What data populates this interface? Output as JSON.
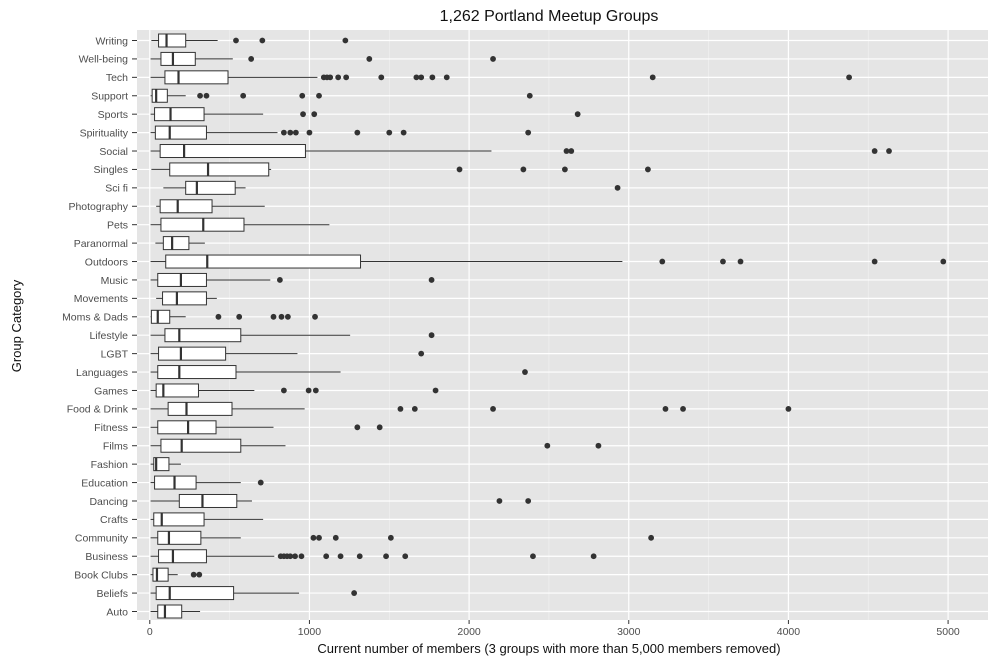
{
  "chart_data": {
    "type": "boxplot",
    "orientation": "horizontal",
    "title": "1,262 Portland Meetup Groups",
    "xlabel": "Current number of members (3 groups with more than 5,000 members removed)",
    "ylabel": "Group Category",
    "xlim": [
      -80,
      5250
    ],
    "xticks": [
      0,
      1000,
      2000,
      3000,
      4000,
      5000
    ],
    "xtick_labels": [
      "0",
      "1000",
      "2000",
      "3000",
      "4000",
      "5000"
    ],
    "grid": true,
    "background": "#e5e5e5",
    "box_fill": "#ffffff",
    "line_color": "#333333",
    "categories": [
      "Writing",
      "Well-being",
      "Tech",
      "Support",
      "Sports",
      "Spirituality",
      "Social",
      "Singles",
      "Sci fi",
      "Photography",
      "Pets",
      "Paranormal",
      "Outdoors",
      "Music",
      "Movements",
      "Moms & Dads",
      "Lifestyle",
      "LGBT",
      "Languages",
      "Games",
      "Food & Drink",
      "Fitness",
      "Films",
      "Fashion",
      "Education",
      "Dancing",
      "Crafts",
      "Community",
      "Business",
      "Book Clubs",
      "Beliefs",
      "Auto"
    ],
    "boxes": [
      {
        "category": "Writing",
        "whisker_low": 10,
        "q1": 55,
        "median": 105,
        "q3": 225,
        "whisker_high": 425,
        "outliers": [
          540,
          705,
          1225
        ]
      },
      {
        "category": "Well-being",
        "whisker_low": 5,
        "q1": 70,
        "median": 145,
        "q3": 285,
        "whisker_high": 520,
        "outliers": [
          635,
          1375,
          2150
        ]
      },
      {
        "category": "Tech",
        "whisker_low": 5,
        "q1": 95,
        "median": 180,
        "q3": 490,
        "whisker_high": 1050,
        "outliers": [
          1090,
          1110,
          1130,
          1180,
          1230,
          1450,
          1670,
          1700,
          1770,
          1860,
          3150,
          4380
        ]
      },
      {
        "category": "Support",
        "whisker_low": 5,
        "q1": 15,
        "median": 40,
        "q3": 110,
        "whisker_high": 225,
        "outliers": [
          315,
          355,
          585,
          955,
          1060,
          2380
        ]
      },
      {
        "category": "Sports",
        "whisker_low": 5,
        "q1": 30,
        "median": 130,
        "q3": 340,
        "whisker_high": 710,
        "outliers": [
          960,
          1030,
          2680
        ]
      },
      {
        "category": "Spirituality",
        "whisker_low": 5,
        "q1": 35,
        "median": 125,
        "q3": 355,
        "whisker_high": 800,
        "outliers": [
          840,
          880,
          915,
          1000,
          1300,
          1500,
          1590,
          2370
        ]
      },
      {
        "category": "Social",
        "whisker_low": 5,
        "q1": 65,
        "median": 215,
        "q3": 975,
        "whisker_high": 2140,
        "outliers": [
          2610,
          2640,
          4540,
          4630
        ]
      },
      {
        "category": "Singles",
        "whisker_low": 10,
        "q1": 125,
        "median": 365,
        "q3": 745,
        "whisker_high": 760,
        "outliers": [
          1940,
          2340,
          2600,
          3120
        ]
      },
      {
        "category": "Sci fi",
        "whisker_low": 85,
        "q1": 225,
        "median": 295,
        "q3": 535,
        "whisker_high": 600,
        "outliers": [
          2930
        ]
      },
      {
        "category": "Photography",
        "whisker_low": 40,
        "q1": 65,
        "median": 175,
        "q3": 390,
        "whisker_high": 720,
        "outliers": []
      },
      {
        "category": "Pets",
        "whisker_low": 5,
        "q1": 70,
        "median": 335,
        "q3": 590,
        "whisker_high": 1125,
        "outliers": []
      },
      {
        "category": "Paranormal",
        "whisker_low": 35,
        "q1": 85,
        "median": 140,
        "q3": 245,
        "whisker_high": 345,
        "outliers": []
      },
      {
        "category": "Outdoors",
        "whisker_low": 5,
        "q1": 100,
        "median": 360,
        "q3": 1320,
        "whisker_high": 2960,
        "outliers": [
          3210,
          3590,
          3700,
          4540,
          4970
        ]
      },
      {
        "category": "Music",
        "whisker_low": 5,
        "q1": 50,
        "median": 195,
        "q3": 355,
        "whisker_high": 755,
        "outliers": [
          815,
          1765
        ]
      },
      {
        "category": "Movements",
        "whisker_low": 40,
        "q1": 80,
        "median": 170,
        "q3": 355,
        "whisker_high": 420,
        "outliers": []
      },
      {
        "category": "Moms & Dads",
        "whisker_low": 5,
        "q1": 10,
        "median": 50,
        "q3": 125,
        "whisker_high": 225,
        "outliers": [
          430,
          560,
          775,
          825,
          865,
          1035
        ]
      },
      {
        "category": "Lifestyle",
        "whisker_low": 5,
        "q1": 95,
        "median": 185,
        "q3": 570,
        "whisker_high": 1255,
        "outliers": [
          1765
        ]
      },
      {
        "category": "LGBT",
        "whisker_low": 5,
        "q1": 55,
        "median": 195,
        "q3": 475,
        "whisker_high": 925,
        "outliers": [
          1700
        ]
      },
      {
        "category": "Languages",
        "whisker_low": 5,
        "q1": 50,
        "median": 185,
        "q3": 540,
        "whisker_high": 1195,
        "outliers": [
          2350
        ]
      },
      {
        "category": "Games",
        "whisker_low": 5,
        "q1": 40,
        "median": 85,
        "q3": 305,
        "whisker_high": 655,
        "outliers": [
          840,
          995,
          1040,
          1790
        ]
      },
      {
        "category": "Food & Drink",
        "whisker_low": 5,
        "q1": 115,
        "median": 230,
        "q3": 515,
        "whisker_high": 970,
        "outliers": [
          1570,
          1660,
          2150,
          3230,
          3340,
          4000
        ]
      },
      {
        "category": "Fitness",
        "whisker_low": 5,
        "q1": 50,
        "median": 240,
        "q3": 415,
        "whisker_high": 775,
        "outliers": [
          1300,
          1440
        ]
      },
      {
        "category": "Films",
        "whisker_low": 5,
        "q1": 70,
        "median": 200,
        "q3": 570,
        "whisker_high": 850,
        "outliers": [
          2490,
          2810
        ]
      },
      {
        "category": "Fashion",
        "whisker_low": 5,
        "q1": 25,
        "median": 40,
        "q3": 120,
        "whisker_high": 195,
        "outliers": []
      },
      {
        "category": "Education",
        "whisker_low": 5,
        "q1": 30,
        "median": 155,
        "q3": 290,
        "whisker_high": 570,
        "outliers": [
          695
        ]
      },
      {
        "category": "Dancing",
        "whisker_low": 5,
        "q1": 185,
        "median": 330,
        "q3": 545,
        "whisker_high": 640,
        "outliers": [
          2190,
          2370
        ]
      },
      {
        "category": "Crafts",
        "whisker_low": 5,
        "q1": 25,
        "median": 75,
        "q3": 340,
        "whisker_high": 710,
        "outliers": []
      },
      {
        "category": "Community",
        "whisker_low": 5,
        "q1": 50,
        "median": 120,
        "q3": 320,
        "whisker_high": 570,
        "outliers": [
          1025,
          1060,
          1165,
          1510,
          3140
        ]
      },
      {
        "category": "Business",
        "whisker_low": 5,
        "q1": 55,
        "median": 145,
        "q3": 355,
        "whisker_high": 780,
        "outliers": [
          820,
          840,
          860,
          880,
          910,
          950,
          1105,
          1195,
          1315,
          1480,
          1600,
          2400,
          2780
        ]
      },
      {
        "category": "Book Clubs",
        "whisker_low": 5,
        "q1": 20,
        "median": 45,
        "q3": 115,
        "whisker_high": 175,
        "outliers": [
          275,
          310
        ]
      },
      {
        "category": "Beliefs",
        "whisker_low": 5,
        "q1": 40,
        "median": 125,
        "q3": 525,
        "whisker_high": 935,
        "outliers": [
          1280
        ]
      },
      {
        "category": "Auto",
        "whisker_low": 5,
        "q1": 50,
        "median": 95,
        "q3": 200,
        "whisker_high": 315,
        "outliers": []
      }
    ]
  }
}
